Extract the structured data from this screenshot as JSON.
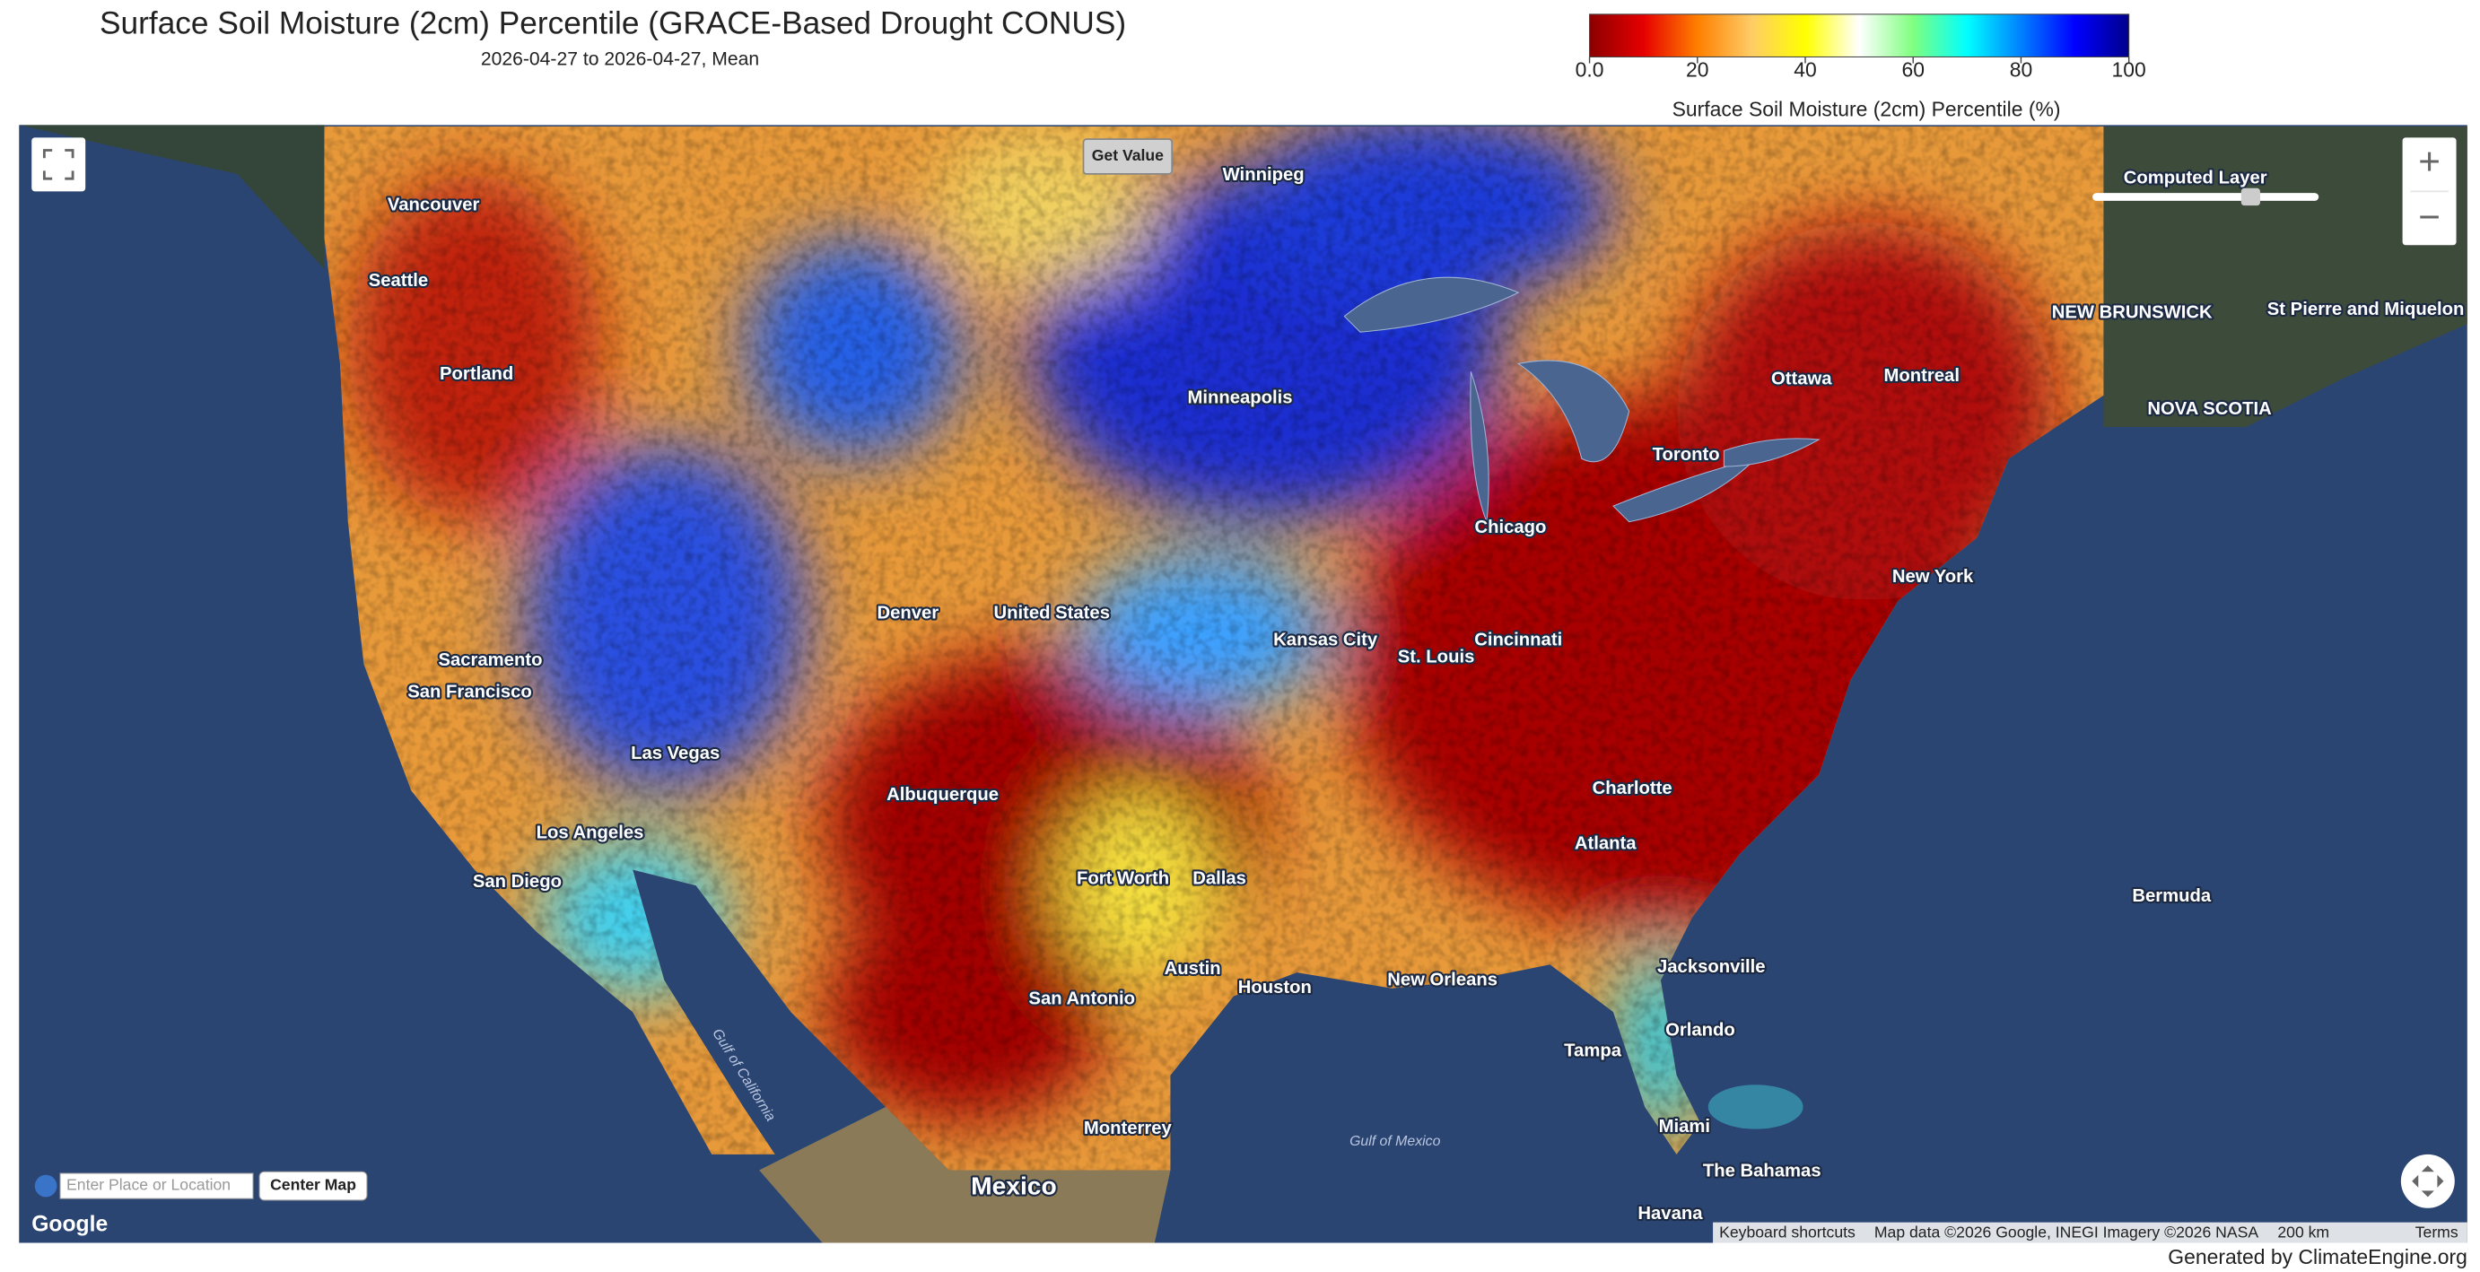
{
  "header": {
    "title": "Surface Soil Moisture (2cm) Percentile (GRACE-Based Drought CONUS)",
    "subtitle": "2026-04-27 to 2026-04-27, Mean"
  },
  "legend": {
    "title": "Surface Soil Moisture (2cm) Percentile (%)",
    "lim": [
      0,
      100
    ],
    "ticks": [
      {
        "value": 0,
        "label": "0.0"
      },
      20,
      40,
      60,
      80,
      100
    ],
    "colors": [
      "#8b0000",
      "#e60000",
      "#ff7f00",
      "#ffcc66",
      "#ffff00",
      "#ffffff",
      "#7fff7f",
      "#00ffff",
      "#0080ff",
      "#0000ff",
      "#00008b"
    ]
  },
  "map": {
    "controls": {
      "get_value": "Get Value",
      "layer_name": "Computed Layer",
      "search_placeholder": "Enter Place or Location",
      "center_button": "Center Map",
      "zoom_in": "+",
      "zoom_out": "−",
      "logo": "Google"
    },
    "labels": [
      "Seattle",
      "Portland",
      "Vancouver",
      "Winnipeg",
      "Sacramento",
      "San Francisco",
      "Los Angeles",
      "San Diego",
      "Las Vegas",
      "Albuquerque",
      "Denver",
      "United States",
      "Minneapolis",
      "Chicago",
      "Toronto",
      "Ottawa",
      "Montreal",
      "New York",
      "Kansas City",
      "St. Louis",
      "Cincinnati",
      "Dallas",
      "Fort Worth",
      "Austin",
      "Houston",
      "San Antonio",
      "New Orleans",
      "Atlanta",
      "Charlotte",
      "Jacksonville",
      "Orlando",
      "Tampa",
      "Miami",
      "Havana",
      "The Bahamas",
      "Bermuda",
      "Mexico",
      "Monterrey",
      "NOVA SCOTIA",
      "NEW BRUNSWICK",
      "St Pierre and Miquelon",
      "Gulf of Mexico",
      "Gulf of California"
    ],
    "attribution": {
      "shortcuts": "Keyboard shortcuts",
      "data": "Map data ©2026 Google, INEGI Imagery ©2026 NASA",
      "scale": "200 km",
      "terms": "Terms"
    }
  },
  "footer": "Generated by ClimateEngine.org"
}
